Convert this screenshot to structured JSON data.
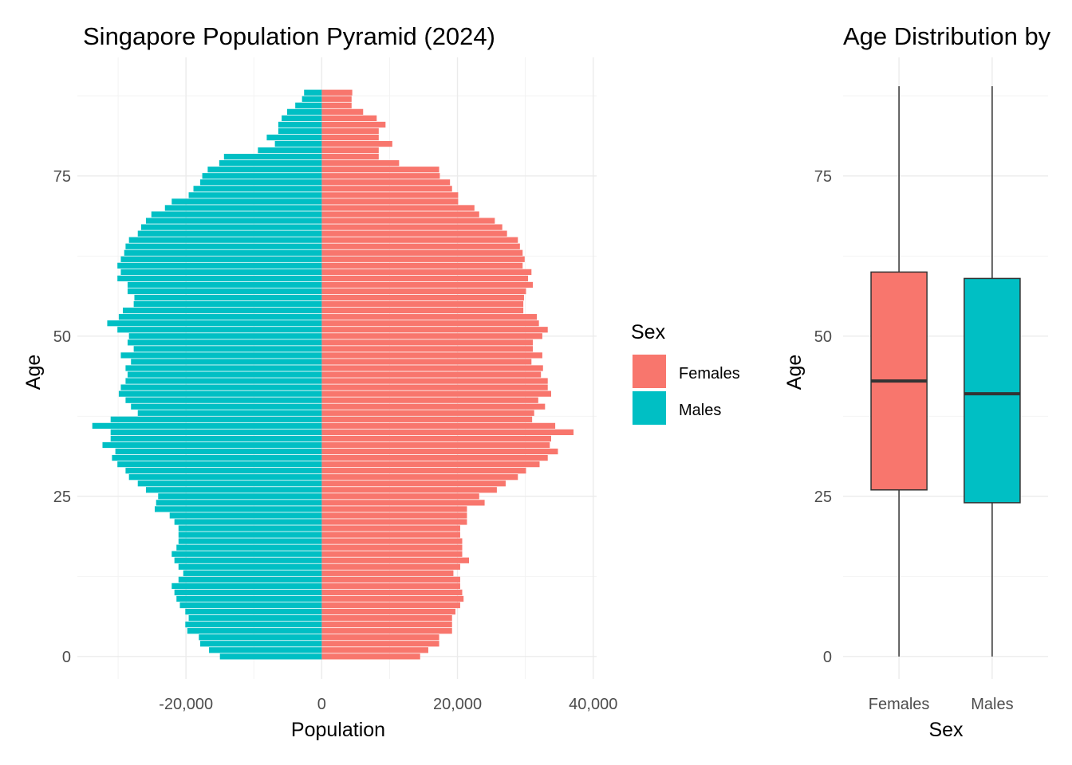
{
  "chart_data": [
    {
      "type": "bar",
      "orientation": "horizontal",
      "title": "Singapore Population Pyramid (2024)",
      "xlabel": "Population",
      "ylabel": "Age",
      "xlim": [
        -36000,
        40500
      ],
      "ylim": [
        -3.5,
        93.5
      ],
      "x_ticks": [
        -20000,
        0,
        20000,
        40000
      ],
      "x_tick_labels": [
        "-20,000",
        "0",
        "20,000",
        "40,000"
      ],
      "y_ticks": [
        0,
        25,
        50,
        75
      ],
      "y_tick_labels": [
        "0",
        "25",
        "50",
        "75"
      ],
      "grid": true,
      "legend": {
        "title": "Sex",
        "placement": "right",
        "entries": [
          {
            "label": "Females",
            "color": "#F8766D"
          },
          {
            "label": "Males",
            "color": "#00BFC4"
          }
        ]
      },
      "categories": [
        0,
        1,
        2,
        3,
        4,
        5,
        6,
        7,
        8,
        9,
        10,
        11,
        12,
        13,
        14,
        15,
        16,
        17,
        18,
        19,
        20,
        21,
        22,
        23,
        24,
        25,
        26,
        27,
        28,
        29,
        30,
        31,
        32,
        33,
        34,
        35,
        36,
        37,
        38,
        39,
        40,
        41,
        42,
        43,
        44,
        45,
        46,
        47,
        48,
        49,
        50,
        51,
        52,
        53,
        54,
        55,
        56,
        57,
        58,
        59,
        60,
        61,
        62,
        63,
        64,
        65,
        66,
        67,
        68,
        69,
        70,
        71,
        72,
        73,
        74,
        75,
        76,
        77,
        78,
        79,
        80,
        81,
        82,
        83,
        84,
        85,
        86,
        87,
        88
      ],
      "series": [
        {
          "name": "Females",
          "color": "#F8766D",
          "values": [
            14500,
            15700,
            17300,
            17300,
            19200,
            19200,
            19200,
            19700,
            20400,
            20900,
            20700,
            20400,
            20400,
            19400,
            20400,
            21700,
            20700,
            20700,
            20700,
            20400,
            20400,
            21400,
            21400,
            21400,
            24000,
            23200,
            25800,
            27100,
            28900,
            30100,
            32100,
            33300,
            34800,
            33600,
            33800,
            37100,
            34400,
            31000,
            31300,
            32900,
            31900,
            33800,
            33300,
            33300,
            32300,
            32600,
            30900,
            32500,
            31100,
            31100,
            32500,
            33300,
            32000,
            31700,
            29700,
            29700,
            29800,
            30100,
            31100,
            30400,
            30900,
            29600,
            29900,
            29600,
            29200,
            28900,
            27300,
            26600,
            25500,
            23200,
            22500,
            20100,
            20100,
            19200,
            18900,
            17400,
            17300,
            11400,
            8400,
            8400,
            10400,
            8400,
            8400,
            9400,
            8100,
            6100,
            4400,
            4400,
            4500
          ]
        },
        {
          "name": "Males",
          "color": "#00BFC4",
          "values": [
            -15000,
            -16600,
            -17900,
            -18100,
            -19800,
            -20100,
            -19600,
            -20100,
            -20900,
            -21400,
            -21700,
            -22100,
            -21100,
            -20400,
            -21100,
            -21700,
            -22100,
            -21400,
            -21100,
            -21100,
            -21100,
            -21700,
            -22400,
            -24600,
            -24400,
            -24100,
            -25900,
            -27100,
            -28400,
            -28900,
            -30100,
            -30900,
            -30400,
            -32300,
            -31100,
            -31100,
            -33800,
            -31100,
            -27100,
            -28100,
            -28900,
            -29900,
            -29600,
            -28900,
            -28600,
            -28900,
            -28100,
            -29600,
            -27700,
            -28600,
            -28400,
            -30100,
            -31600,
            -29900,
            -29300,
            -27700,
            -27600,
            -28600,
            -28600,
            -30100,
            -29600,
            -30100,
            -29600,
            -29100,
            -28900,
            -28400,
            -27100,
            -26600,
            -25900,
            -25100,
            -23100,
            -22100,
            -19600,
            -18900,
            -17900,
            -17600,
            -16800,
            -15100,
            -14400,
            -9400,
            -6900,
            -8100,
            -6400,
            -6400,
            -5900,
            -5100,
            -3900,
            -2900,
            -2600
          ]
        }
      ]
    },
    {
      "type": "box",
      "title": "Age Distribution by",
      "xlabel": "Sex",
      "ylabel": "Age",
      "ylim": [
        -3.5,
        93.5
      ],
      "y_ticks": [
        0,
        25,
        50,
        75
      ],
      "y_tick_labels": [
        "0",
        "25",
        "50",
        "75"
      ],
      "grid": true,
      "categories": [
        "Females",
        "Males"
      ],
      "series": [
        {
          "name": "Females",
          "color": "#F8766D",
          "min": 0,
          "q1": 26,
          "median": 43,
          "q3": 60,
          "max": 89
        },
        {
          "name": "Males",
          "color": "#00BFC4",
          "min": 0,
          "q1": 24,
          "median": 41,
          "q3": 59,
          "max": 89
        }
      ]
    }
  ]
}
